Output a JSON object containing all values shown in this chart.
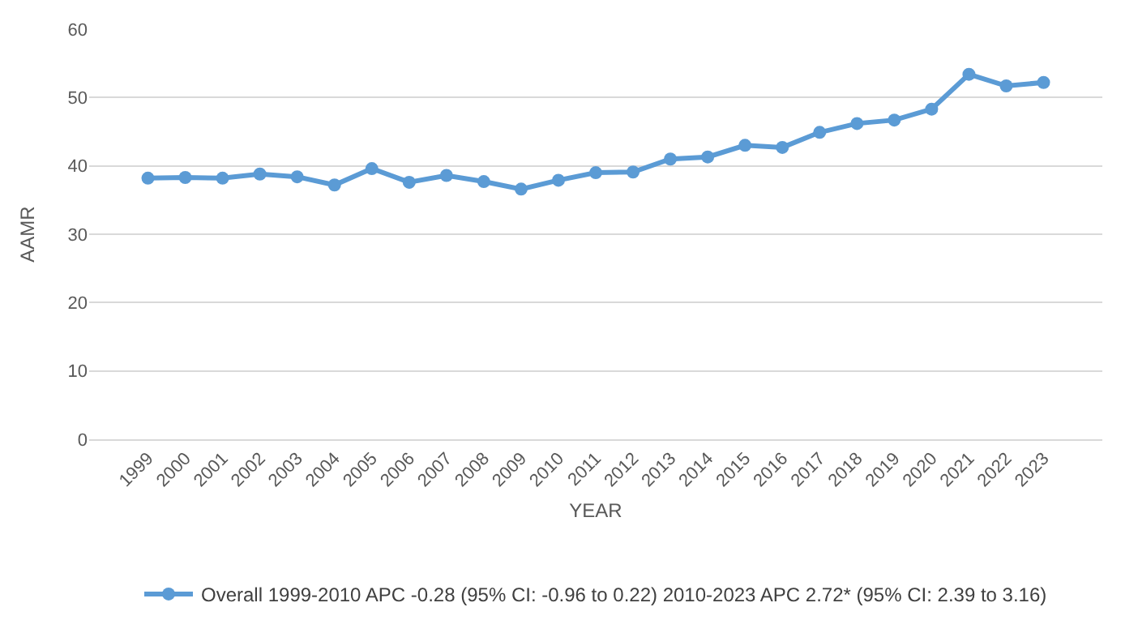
{
  "chart_data": {
    "type": "line",
    "xlabel": "YEAR",
    "ylabel": "AAMR",
    "categories": [
      "1999",
      "2000",
      "2001",
      "2002",
      "2003",
      "2004",
      "2005",
      "2006",
      "2007",
      "2008",
      "2009",
      "2010",
      "2011",
      "2012",
      "2013",
      "2014",
      "2015",
      "2016",
      "2017",
      "2018",
      "2019",
      "2020",
      "2021",
      "2022",
      "2023"
    ],
    "series": [
      {
        "name": "Overall 1999-2010 APC -0.28 (95% CI: -0.96 to 0.22) 2010-2023 APC 2.72* (95% CI: 2.39 to 3.16)",
        "color": "#5b9bd5",
        "values": [
          38.2,
          38.3,
          38.2,
          38.8,
          38.4,
          37.2,
          39.6,
          37.6,
          38.6,
          37.7,
          36.6,
          37.9,
          39.0,
          39.1,
          41.0,
          41.3,
          43.0,
          42.7,
          44.9,
          46.2,
          46.7,
          48.3,
          53.4,
          51.7,
          52.2
        ]
      }
    ],
    "ylim": [
      0,
      60
    ],
    "yticks": [
      0,
      10,
      20,
      30,
      40,
      50,
      60
    ],
    "grid": "y",
    "legend": "bottom",
    "marker": "circle",
    "line_style": "solid"
  }
}
